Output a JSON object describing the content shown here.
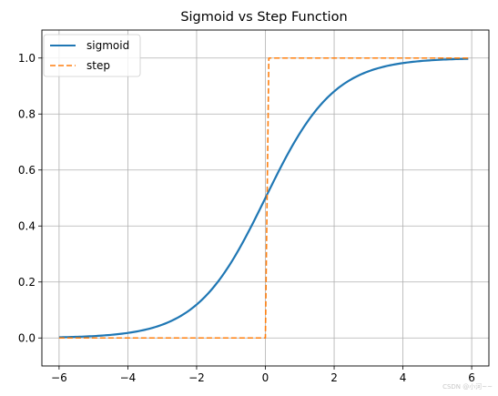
{
  "chart_data": {
    "type": "line",
    "title": "Sigmoid vs Step Function",
    "xlabel": "",
    "ylabel": "",
    "xlim": [
      -6.5,
      6.5
    ],
    "ylim": [
      -0.1,
      1.1
    ],
    "xticks": [
      -6,
      -4,
      -2,
      0,
      2,
      4,
      6
    ],
    "xtick_labels": [
      "−6",
      "−4",
      "−2",
      "0",
      "2",
      "4",
      "6"
    ],
    "yticks": [
      0.0,
      0.2,
      0.4,
      0.6,
      0.8,
      1.0
    ],
    "ytick_labels": [
      "0.0",
      "0.2",
      "0.4",
      "0.6",
      "0.8",
      "1.0"
    ],
    "grid": true,
    "legend_position": "top-left",
    "series": [
      {
        "name": "sigmoid",
        "style": "solid",
        "color": "#1f77b4",
        "x": [
          -6.0,
          -5.5,
          -5.0,
          -4.5,
          -4.0,
          -3.5,
          -3.0,
          -2.5,
          -2.0,
          -1.5,
          -1.0,
          -0.5,
          0.0,
          0.5,
          1.0,
          1.5,
          2.0,
          2.5,
          3.0,
          3.5,
          4.0,
          4.5,
          5.0,
          5.5,
          5.9
        ],
        "y": [
          0.0025,
          0.0041,
          0.0067,
          0.011,
          0.018,
          0.029,
          0.047,
          0.076,
          0.119,
          0.182,
          0.269,
          0.378,
          0.5,
          0.622,
          0.731,
          0.818,
          0.881,
          0.924,
          0.953,
          0.971,
          0.982,
          0.989,
          0.993,
          0.996,
          0.997
        ]
      },
      {
        "name": "step",
        "style": "dashed",
        "color": "#ff7f0e",
        "x": [
          -6.0,
          0.0,
          0.0,
          0.1,
          5.9
        ],
        "y": [
          0.0,
          0.0,
          0.0,
          1.0,
          1.0
        ]
      }
    ],
    "watermark": "CSDN @小河~~"
  }
}
